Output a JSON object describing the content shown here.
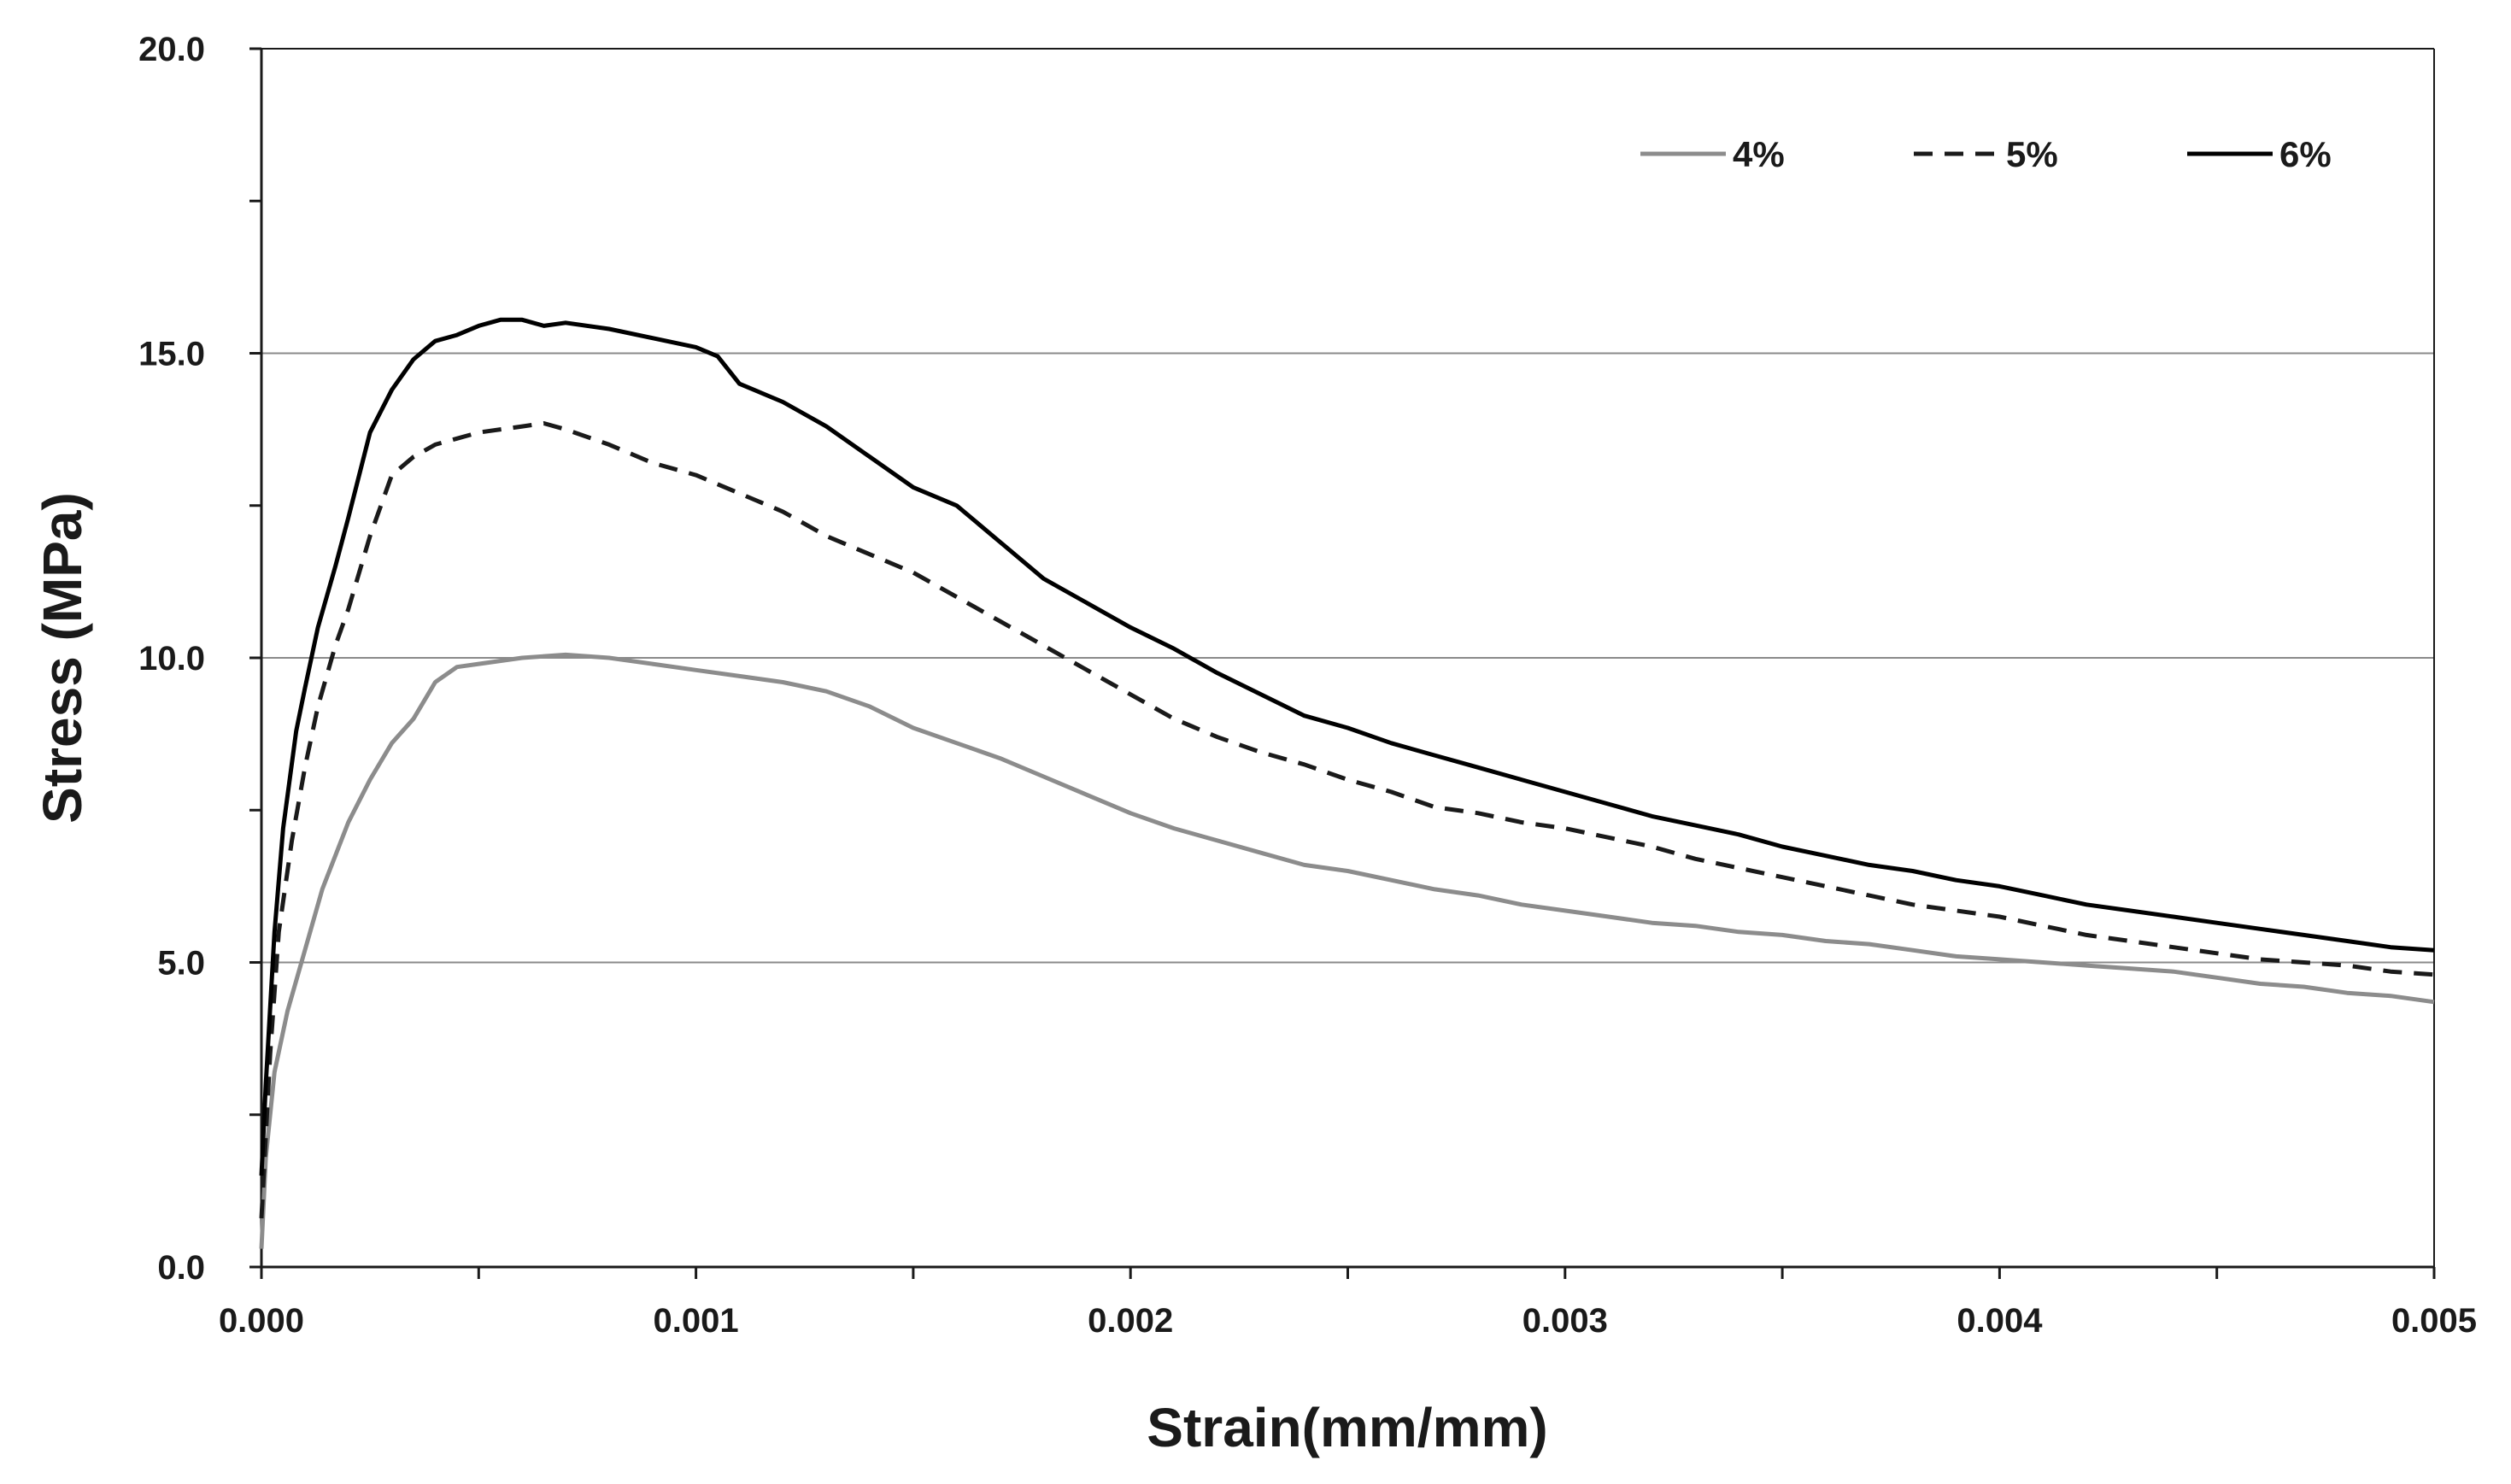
{
  "chart_data": {
    "type": "line",
    "title": "",
    "xlabel": "Strain(mm/mm)",
    "ylabel": "Stress (MPa)",
    "xlim": [
      0,
      0.005
    ],
    "ylim": [
      0,
      20
    ],
    "x_ticks": [
      "0.000",
      "0.001",
      "0.002",
      "0.003",
      "0.004",
      "0.005"
    ],
    "y_ticks": [
      "0.0",
      "5.0",
      "10.0",
      "15.0",
      "20.0"
    ],
    "grid": "horizontal",
    "legend_position": "top-right",
    "series": [
      {
        "name": "4%",
        "color": "#8c8c8c",
        "dash": "solid",
        "points": [
          [
            0,
            0.3
          ],
          [
            1e-05,
            1.8
          ],
          [
            3e-05,
            3.2
          ],
          [
            6e-05,
            4.2
          ],
          [
            0.0001,
            5.2
          ],
          [
            0.00014,
            6.2
          ],
          [
            0.0002,
            7.3
          ],
          [
            0.00025,
            8.0
          ],
          [
            0.0003,
            8.6
          ],
          [
            0.00035,
            9.0
          ],
          [
            0.0004,
            9.6
          ],
          [
            0.00045,
            9.85
          ],
          [
            0.0005,
            9.9
          ],
          [
            0.0006,
            10.0
          ],
          [
            0.0007,
            10.05
          ],
          [
            0.0008,
            10.0
          ],
          [
            0.0009,
            9.9
          ],
          [
            0.001,
            9.8
          ],
          [
            0.0011,
            9.7
          ],
          [
            0.0012,
            9.6
          ],
          [
            0.0013,
            9.45
          ],
          [
            0.0014,
            9.2
          ],
          [
            0.0015,
            8.85
          ],
          [
            0.0016,
            8.6
          ],
          [
            0.0017,
            8.35
          ],
          [
            0.0018,
            8.05
          ],
          [
            0.0019,
            7.75
          ],
          [
            0.002,
            7.45
          ],
          [
            0.0021,
            7.2
          ],
          [
            0.0022,
            7.0
          ],
          [
            0.0023,
            6.8
          ],
          [
            0.0024,
            6.6
          ],
          [
            0.0025,
            6.5
          ],
          [
            0.0026,
            6.35
          ],
          [
            0.0027,
            6.2
          ],
          [
            0.0028,
            6.1
          ],
          [
            0.0029,
            5.95
          ],
          [
            0.003,
            5.85
          ],
          [
            0.0031,
            5.75
          ],
          [
            0.0032,
            5.65
          ],
          [
            0.0033,
            5.6
          ],
          [
            0.0034,
            5.5
          ],
          [
            0.0035,
            5.45
          ],
          [
            0.0036,
            5.35
          ],
          [
            0.0037,
            5.3
          ],
          [
            0.0038,
            5.2
          ],
          [
            0.0039,
            5.1
          ],
          [
            0.004,
            5.05
          ],
          [
            0.0041,
            5.0
          ],
          [
            0.0042,
            4.95
          ],
          [
            0.0043,
            4.9
          ],
          [
            0.0044,
            4.85
          ],
          [
            0.0045,
            4.75
          ],
          [
            0.0046,
            4.65
          ],
          [
            0.0047,
            4.6
          ],
          [
            0.0048,
            4.5
          ],
          [
            0.0049,
            4.45
          ],
          [
            0.005,
            4.35
          ]
        ]
      },
      {
        "name": "5%",
        "color": "#1a1a1a",
        "dash": "dashed",
        "points": [
          [
            0,
            0.8
          ],
          [
            2e-05,
            3.5
          ],
          [
            4e-05,
            5.5
          ],
          [
            7e-05,
            7.0
          ],
          [
            0.0001,
            8.2
          ],
          [
            0.00013,
            9.2
          ],
          [
            0.00017,
            10.2
          ],
          [
            0.0002,
            10.8
          ],
          [
            0.00025,
            12.0
          ],
          [
            0.0003,
            13.0
          ],
          [
            0.00035,
            13.3
          ],
          [
            0.0004,
            13.5
          ],
          [
            0.00045,
            13.6
          ],
          [
            0.0005,
            13.7
          ],
          [
            0.0006,
            13.8
          ],
          [
            0.00065,
            13.85
          ],
          [
            0.0007,
            13.75
          ],
          [
            0.0008,
            13.5
          ],
          [
            0.0009,
            13.2
          ],
          [
            0.001,
            13.0
          ],
          [
            0.0011,
            12.7
          ],
          [
            0.0012,
            12.4
          ],
          [
            0.0013,
            12.0
          ],
          [
            0.0014,
            11.7
          ],
          [
            0.0015,
            11.4
          ],
          [
            0.0016,
            11.0
          ],
          [
            0.0017,
            10.6
          ],
          [
            0.0018,
            10.2
          ],
          [
            0.0019,
            9.8
          ],
          [
            0.002,
            9.4
          ],
          [
            0.0021,
            9.0
          ],
          [
            0.0022,
            8.7
          ],
          [
            0.0023,
            8.45
          ],
          [
            0.0024,
            8.25
          ],
          [
            0.0025,
            8.0
          ],
          [
            0.0026,
            7.8
          ],
          [
            0.0027,
            7.55
          ],
          [
            0.0028,
            7.45
          ],
          [
            0.0029,
            7.3
          ],
          [
            0.003,
            7.2
          ],
          [
            0.0031,
            7.05
          ],
          [
            0.0032,
            6.9
          ],
          [
            0.0033,
            6.7
          ],
          [
            0.0034,
            6.55
          ],
          [
            0.0035,
            6.4
          ],
          [
            0.0036,
            6.25
          ],
          [
            0.0037,
            6.1
          ],
          [
            0.0038,
            5.95
          ],
          [
            0.0039,
            5.85
          ],
          [
            0.004,
            5.75
          ],
          [
            0.0041,
            5.6
          ],
          [
            0.0042,
            5.45
          ],
          [
            0.0043,
            5.35
          ],
          [
            0.0044,
            5.25
          ],
          [
            0.0045,
            5.15
          ],
          [
            0.0046,
            5.05
          ],
          [
            0.0047,
            5.0
          ],
          [
            0.0048,
            4.95
          ],
          [
            0.0049,
            4.85
          ],
          [
            0.005,
            4.8
          ]
        ]
      },
      {
        "name": "6%",
        "color": "#000000",
        "dash": "solid",
        "points": [
          [
            0,
            1.5
          ],
          [
            1e-05,
            3.0
          ],
          [
            3e-05,
            5.5
          ],
          [
            5e-05,
            7.2
          ],
          [
            8e-05,
            8.8
          ],
          [
            0.0001,
            9.5
          ],
          [
            0.00013,
            10.5
          ],
          [
            0.00017,
            11.5
          ],
          [
            0.0002,
            12.3
          ],
          [
            0.00025,
            13.7
          ],
          [
            0.0003,
            14.4
          ],
          [
            0.00035,
            14.9
          ],
          [
            0.0004,
            15.2
          ],
          [
            0.00045,
            15.3
          ],
          [
            0.0005,
            15.45
          ],
          [
            0.00055,
            15.55
          ],
          [
            0.0006,
            15.55
          ],
          [
            0.00065,
            15.45
          ],
          [
            0.0007,
            15.5
          ],
          [
            0.0008,
            15.4
          ],
          [
            0.0009,
            15.25
          ],
          [
            0.001,
            15.1
          ],
          [
            0.00105,
            14.95
          ],
          [
            0.0011,
            14.5
          ],
          [
            0.0012,
            14.2
          ],
          [
            0.0013,
            13.8
          ],
          [
            0.0014,
            13.3
          ],
          [
            0.0015,
            12.8
          ],
          [
            0.0016,
            12.5
          ],
          [
            0.0017,
            11.9
          ],
          [
            0.0018,
            11.3
          ],
          [
            0.0019,
            10.9
          ],
          [
            0.002,
            10.5
          ],
          [
            0.0021,
            10.15
          ],
          [
            0.0022,
            9.75
          ],
          [
            0.0023,
            9.4
          ],
          [
            0.0024,
            9.05
          ],
          [
            0.0025,
            8.85
          ],
          [
            0.0026,
            8.6
          ],
          [
            0.0027,
            8.4
          ],
          [
            0.0028,
            8.2
          ],
          [
            0.0029,
            8.0
          ],
          [
            0.003,
            7.8
          ],
          [
            0.0031,
            7.6
          ],
          [
            0.0032,
            7.4
          ],
          [
            0.0033,
            7.25
          ],
          [
            0.0034,
            7.1
          ],
          [
            0.0035,
            6.9
          ],
          [
            0.0036,
            6.75
          ],
          [
            0.0037,
            6.6
          ],
          [
            0.0038,
            6.5
          ],
          [
            0.0039,
            6.35
          ],
          [
            0.004,
            6.25
          ],
          [
            0.0041,
            6.1
          ],
          [
            0.0042,
            5.95
          ],
          [
            0.0043,
            5.85
          ],
          [
            0.0044,
            5.75
          ],
          [
            0.0045,
            5.65
          ],
          [
            0.0046,
            5.55
          ],
          [
            0.0047,
            5.45
          ],
          [
            0.0048,
            5.35
          ],
          [
            0.0049,
            5.25
          ],
          [
            0.005,
            5.2
          ]
        ]
      }
    ]
  }
}
